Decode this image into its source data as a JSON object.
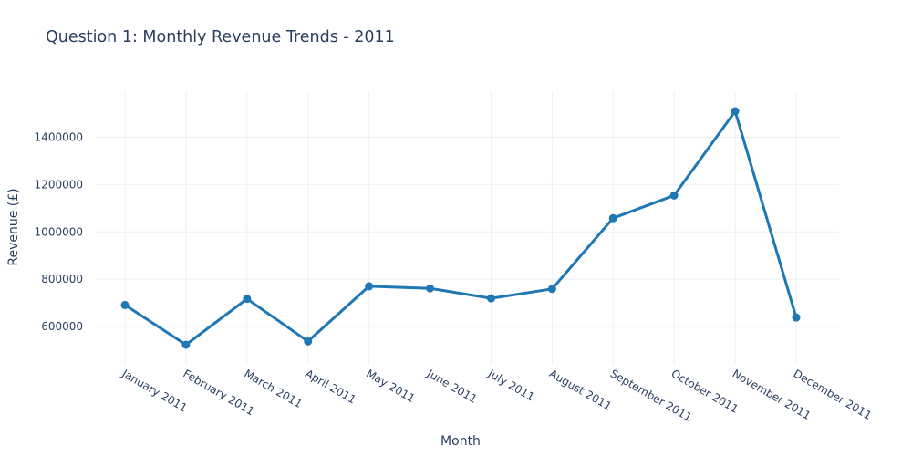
{
  "chart_data": {
    "type": "line",
    "title": "Question 1: Monthly Revenue Trends - 2011",
    "xlabel": "Month",
    "ylabel": "Revenue (£)",
    "categories": [
      "January 2011",
      "February 2011",
      "March 2011",
      "April 2011",
      "May 2011",
      "June 2011",
      "July 2011",
      "August 2011",
      "September 2011",
      "October 2011",
      "November 2011",
      "December 2011"
    ],
    "values": [
      691000,
      523000,
      717000,
      537000,
      770000,
      761000,
      719000,
      759000,
      1058000,
      1154000,
      1510000,
      638000
    ],
    "yticks": [
      600000,
      800000,
      1000000,
      1200000,
      1400000
    ],
    "ylim": [
      438000,
      1595000
    ],
    "grid": true,
    "color": "#1f77b4"
  }
}
